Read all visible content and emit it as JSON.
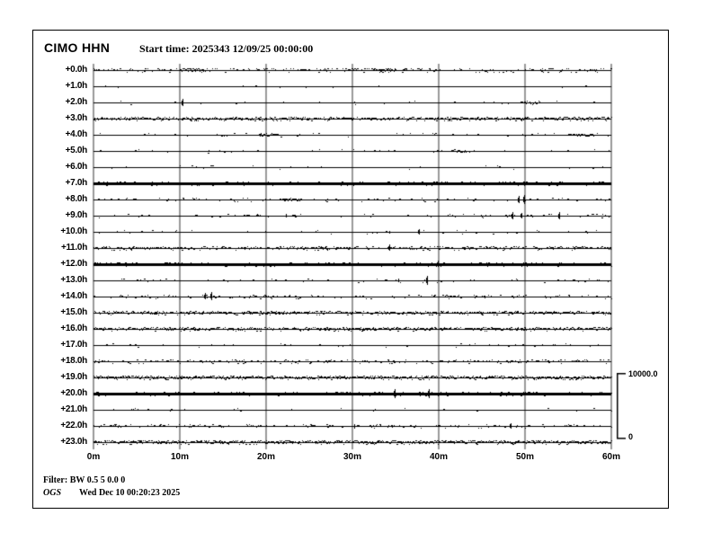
{
  "header": {
    "station_channel": "CIMO HHN",
    "start_time_label": "Start time: 2025343 12/09/25 00:00:00"
  },
  "footer": {
    "filter_line": "Filter: BW 0.5 5 0.0 0",
    "org": "OGS",
    "generated": "Wed Dec 10 00:20:23 2025"
  },
  "scale_bar": {
    "top_label": "10000.0",
    "bottom_label": "0"
  },
  "colors": {
    "background": "#ffffff",
    "border": "#000000",
    "trace": "#000000",
    "grid": "#999999"
  },
  "chart_data": {
    "type": "line",
    "subtype": "helicorder-24h",
    "title": "CIMO HHN",
    "start_time": "2025343 12/09/25 00:00:00",
    "x_range_minutes": [
      0,
      60
    ],
    "x_ticks": [
      "0m",
      "10m",
      "20m",
      "30m",
      "40m",
      "50m",
      "60m"
    ],
    "x_tick_minutes": [
      0,
      10,
      20,
      30,
      40,
      50,
      60
    ],
    "amplitude_scale": {
      "max": 10000.0,
      "min": 0
    },
    "grid": true,
    "rows": [
      {
        "label": "+0.0h",
        "hour": 0,
        "style": "medium",
        "density": 0.3,
        "amp": 2.0,
        "spikes": [],
        "bursts": [
          {
            "m": 11.5,
            "w": 3.0,
            "a": 1.5
          },
          {
            "m": 34.0,
            "w": 2.0,
            "a": 1.2
          }
        ],
        "dots": []
      },
      {
        "label": "+1.0h",
        "hour": 1,
        "style": "thin",
        "density": 0.03,
        "amp": 1.4,
        "spikes": [],
        "bursts": [],
        "dots": [
          18.7
        ]
      },
      {
        "label": "+2.0h",
        "hour": 2,
        "style": "thin",
        "density": 0.04,
        "amp": 1.4,
        "spikes": [
          {
            "m": 10.3,
            "a": 4.5
          }
        ],
        "bursts": [
          {
            "m": 50.8,
            "w": 1.8,
            "a": 1.5
          }
        ],
        "dots": []
      },
      {
        "label": "+3.0h",
        "hour": 3,
        "style": "dense",
        "density": 0.7,
        "amp": 1.4,
        "spikes": [],
        "bursts": [],
        "dots": []
      },
      {
        "label": "+4.0h",
        "hour": 4,
        "style": "thin",
        "density": 0.07,
        "amp": 1.4,
        "spikes": [],
        "bursts": [
          {
            "m": 20.3,
            "w": 2.2,
            "a": 1.3
          },
          {
            "m": 56.5,
            "w": 3.0,
            "a": 1.0
          }
        ],
        "dots": []
      },
      {
        "label": "+5.0h",
        "hour": 5,
        "style": "thin",
        "density": 0.06,
        "amp": 1.4,
        "spikes": [],
        "bursts": [
          {
            "m": 42.3,
            "w": 1.8,
            "a": 1.4
          }
        ],
        "dots": []
      },
      {
        "label": "+6.0h",
        "hour": 6,
        "style": "thin",
        "density": 0.04,
        "amp": 1.4,
        "spikes": [],
        "bursts": [],
        "dots": [
          47.0
        ]
      },
      {
        "label": "+7.0h",
        "hour": 7,
        "style": "solid",
        "density": 0.5,
        "amp": 1.4,
        "spikes": [],
        "bursts": [],
        "dots": []
      },
      {
        "label": "+8.0h",
        "hour": 8,
        "style": "thin",
        "density": 0.12,
        "amp": 1.4,
        "spikes": [
          {
            "m": 49.3,
            "a": 4.5
          },
          {
            "m": 49.9,
            "a": 5.5
          }
        ],
        "bursts": [
          {
            "m": 22.8,
            "w": 2.5,
            "a": 1.1
          }
        ],
        "dots": []
      },
      {
        "label": "+9.0h",
        "hour": 9,
        "style": "thin",
        "density": 0.12,
        "amp": 1.4,
        "spikes": [
          {
            "m": 22.3,
            "a": 2.0
          },
          {
            "m": 48.5,
            "a": 4.5
          },
          {
            "m": 49.6,
            "a": 3.5
          },
          {
            "m": 54.0,
            "a": 4.5
          }
        ],
        "bursts": [],
        "dots": []
      },
      {
        "label": "+10.0h",
        "hour": 10,
        "style": "thin",
        "density": 0.07,
        "amp": 1.4,
        "spikes": [
          {
            "m": 34.3,
            "a": 1.5
          },
          {
            "m": 37.7,
            "a": 3.5
          }
        ],
        "bursts": [],
        "dots": []
      },
      {
        "label": "+11.0h",
        "hour": 11,
        "style": "dense",
        "density": 0.5,
        "amp": 1.4,
        "spikes": [
          {
            "m": 34.3,
            "a": 4.0
          }
        ],
        "bursts": [],
        "dots": []
      },
      {
        "label": "+12.0h",
        "hour": 12,
        "style": "solid",
        "density": 0.5,
        "amp": 1.4,
        "spikes": [
          {
            "m": 39.9,
            "a": 4.0
          }
        ],
        "bursts": [],
        "dots": []
      },
      {
        "label": "+13.0h",
        "hour": 13,
        "style": "thin",
        "density": 0.1,
        "amp": 1.4,
        "spikes": [
          {
            "m": 35.3,
            "a": 2.0
          },
          {
            "m": 38.6,
            "a": 5.5
          }
        ],
        "bursts": [],
        "dots": []
      },
      {
        "label": "+14.0h",
        "hour": 14,
        "style": "medium",
        "density": 0.22,
        "amp": 1.6,
        "spikes": [
          {
            "m": 12.9,
            "a": 4.0
          },
          {
            "m": 13.6,
            "a": 5.0
          }
        ],
        "bursts": [
          {
            "m": 41.2,
            "w": 1.6,
            "a": 2.0
          }
        ],
        "dots": [
          23.3
        ]
      },
      {
        "label": "+15.0h",
        "hour": 15,
        "style": "dense",
        "density": 0.68,
        "amp": 1.3,
        "spikes": [],
        "bursts": [],
        "dots": []
      },
      {
        "label": "+16.0h",
        "hour": 16,
        "style": "dense",
        "density": 0.68,
        "amp": 1.3,
        "spikes": [],
        "bursts": [],
        "dots": []
      },
      {
        "label": "+17.0h",
        "hour": 17,
        "style": "thin",
        "density": 0.08,
        "amp": 1.4,
        "spikes": [],
        "bursts": [],
        "dots": []
      },
      {
        "label": "+18.0h",
        "hour": 18,
        "style": "medium",
        "density": 0.3,
        "amp": 1.4,
        "spikes": [],
        "bursts": [],
        "dots": []
      },
      {
        "label": "+19.0h",
        "hour": 19,
        "style": "dense",
        "density": 0.78,
        "amp": 1.4,
        "spikes": [],
        "bursts": [],
        "dots": []
      },
      {
        "label": "+20.0h",
        "hour": 20,
        "style": "solid",
        "density": 0.5,
        "amp": 1.4,
        "spikes": [
          {
            "m": 34.9,
            "a": 5.5
          },
          {
            "m": 37.8,
            "a": 2.5
          },
          {
            "m": 38.9,
            "a": 5.5
          }
        ],
        "bursts": [],
        "dots": []
      },
      {
        "label": "+21.0h",
        "hour": 21,
        "style": "thin",
        "density": 0.03,
        "amp": 1.4,
        "spikes": [],
        "bursts": [],
        "dots": [
          6.3
        ]
      },
      {
        "label": "+22.0h",
        "hour": 22,
        "style": "medium",
        "density": 0.25,
        "amp": 1.4,
        "spikes": [
          {
            "m": 30.2,
            "a": 2.5
          },
          {
            "m": 48.3,
            "a": 3.5
          }
        ],
        "bursts": [],
        "dots": []
      },
      {
        "label": "+23.0h",
        "hour": 23,
        "style": "dense",
        "density": 0.78,
        "amp": 1.4,
        "spikes": [],
        "bursts": [],
        "dots": []
      }
    ]
  }
}
